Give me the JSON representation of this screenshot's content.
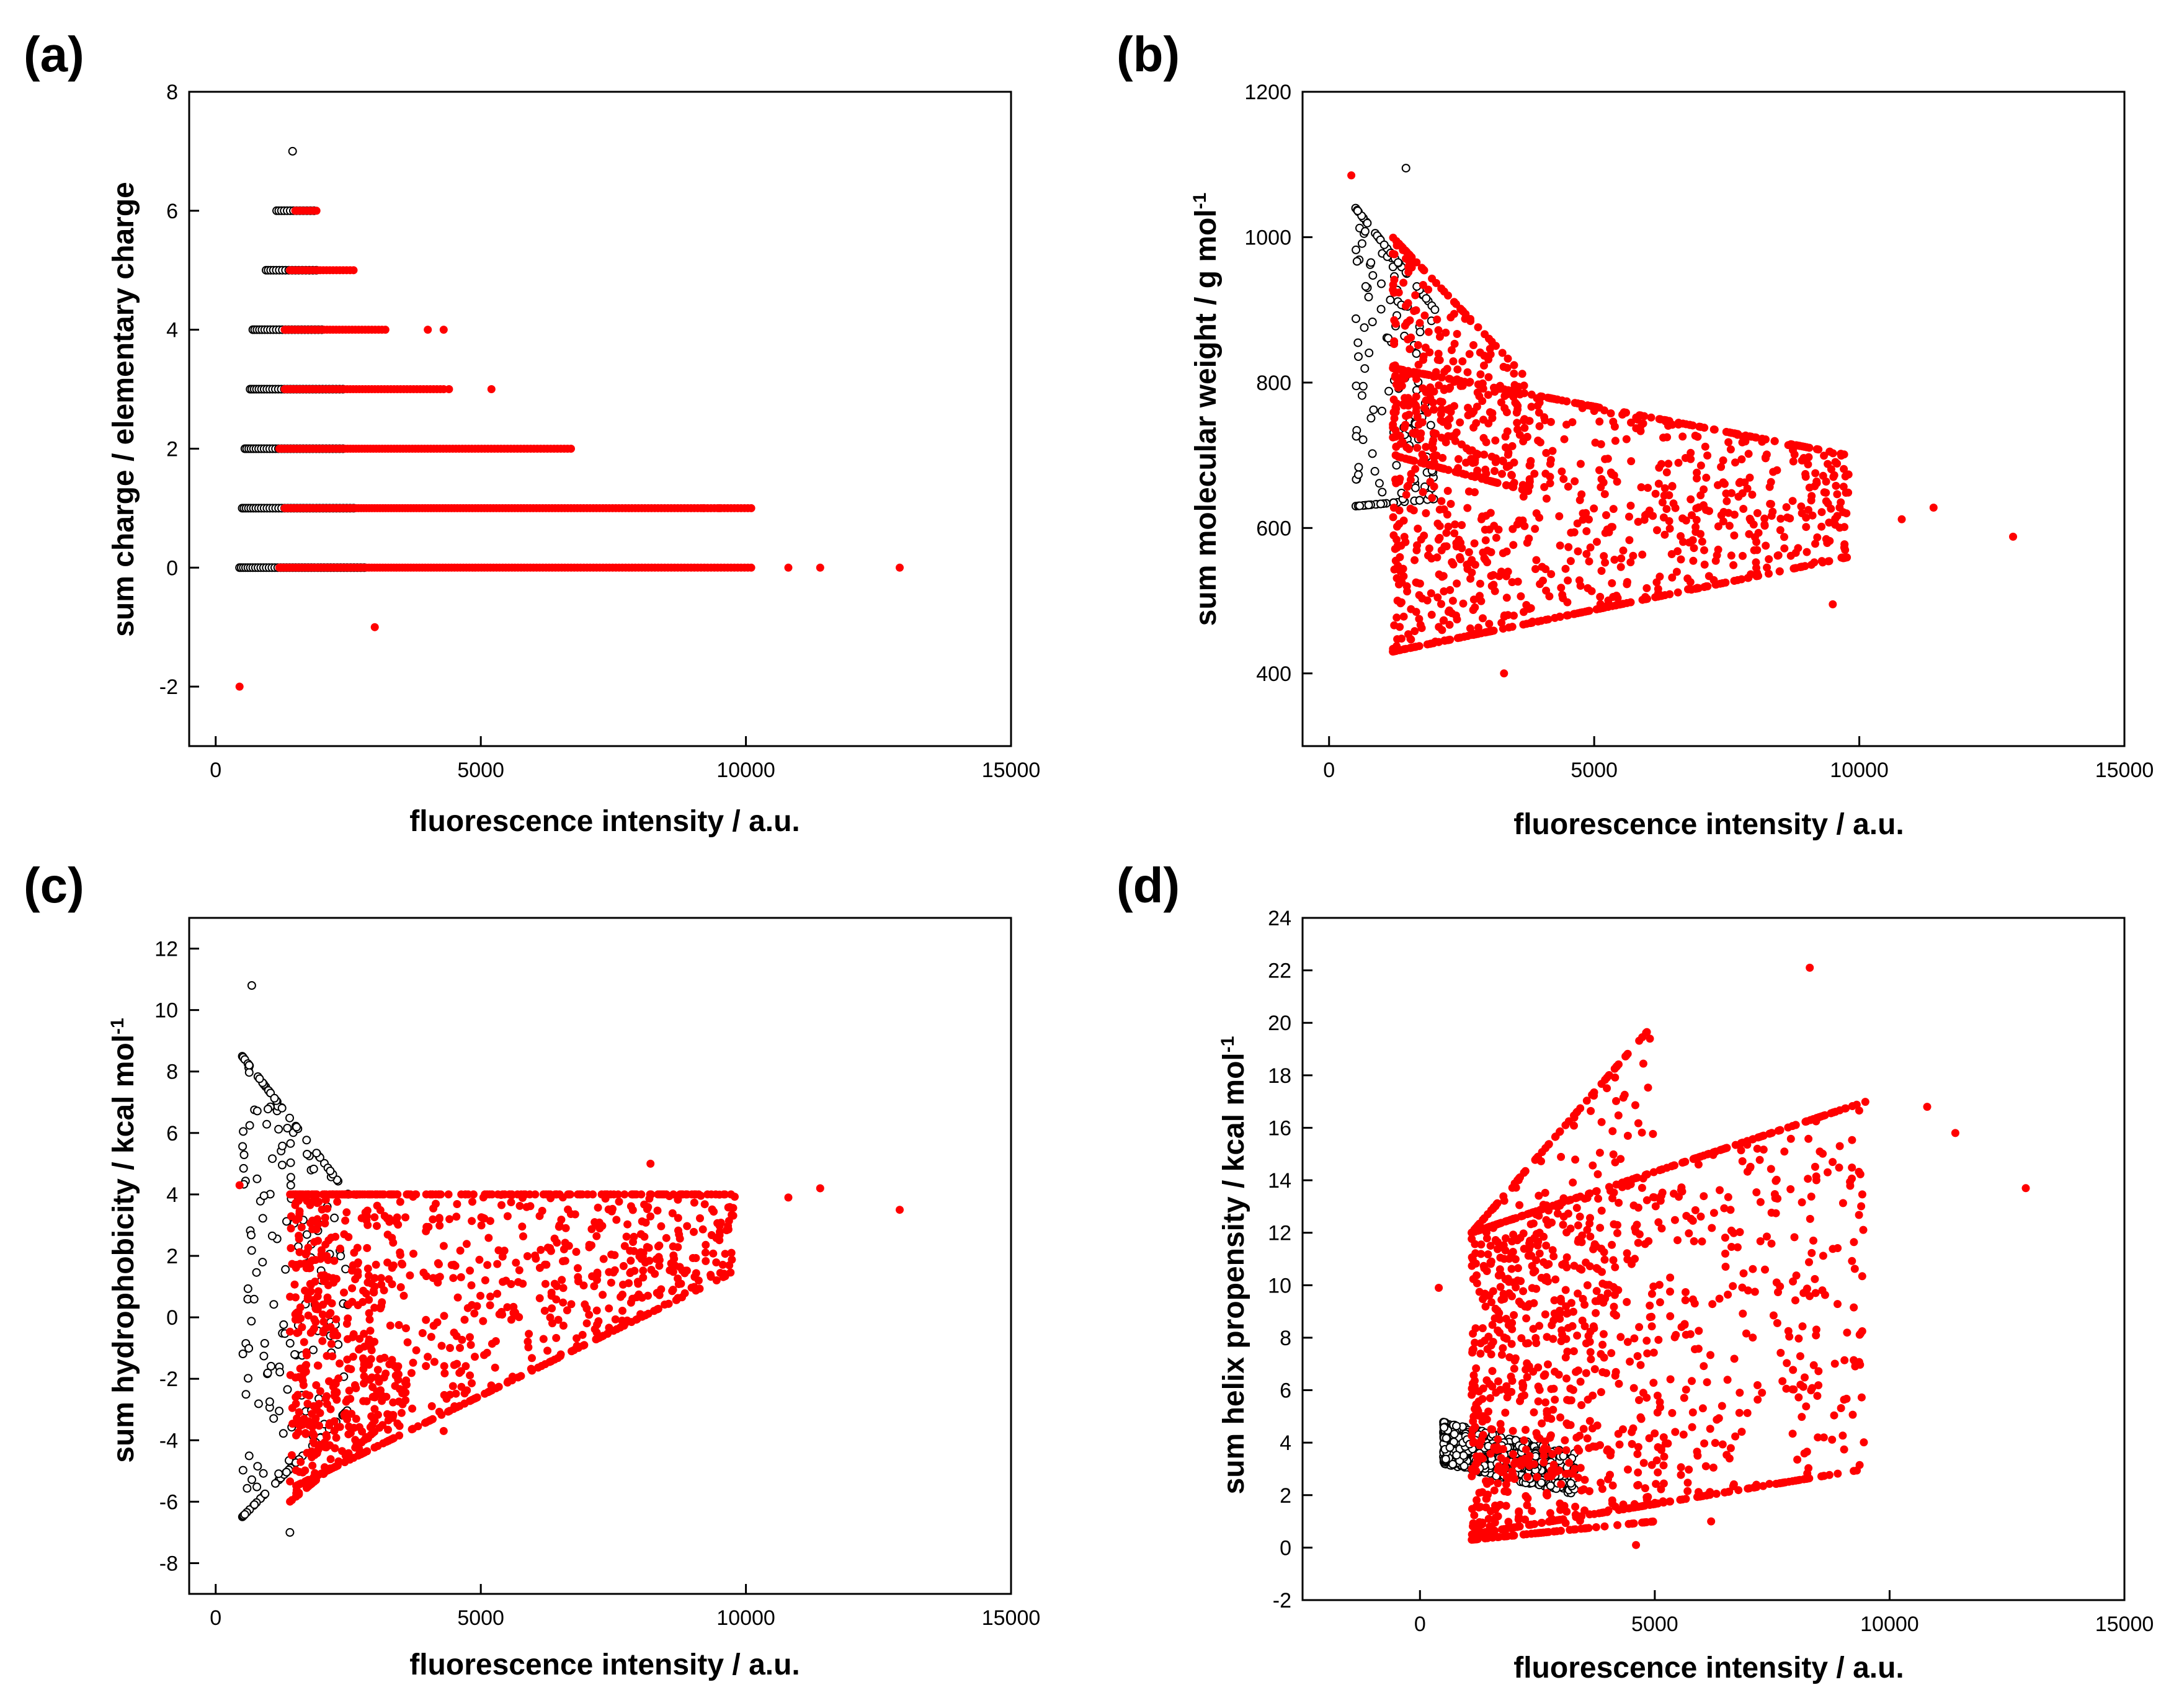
{
  "chart_data": [
    {
      "type": "scatter",
      "panel_label": "(a)",
      "xlabel": "fluorescence intensity / a.u.",
      "ylabel": "sum charge / elementary charge",
      "ylabel_sup": "",
      "xlim": [
        -500,
        15000
      ],
      "ylim": [
        -3,
        8
      ],
      "xticks": [
        0,
        5000,
        10000,
        15000
      ],
      "yticks": [
        -2,
        0,
        2,
        4,
        6,
        8
      ],
      "colors": {
        "black_series": "#000000",
        "red_series": "#ff0000"
      },
      "clouds": [
        {
          "color": "red",
          "kind": "rows",
          "rows": [
            {
              "y": 0,
              "x": [
                1200,
                10100
              ]
            },
            {
              "y": 1,
              "x": [
                1300,
                10100
              ]
            },
            {
              "y": 2,
              "x": [
                1200,
                6700
              ]
            },
            {
              "y": 3,
              "x": [
                1300,
                4300
              ]
            },
            {
              "y": 4,
              "x": [
                1300,
                3200
              ]
            },
            {
              "y": 5,
              "x": [
                1400,
                2600
              ]
            },
            {
              "y": 6,
              "x": [
                1500,
                1900
              ]
            }
          ]
        },
        {
          "color": "black",
          "kind": "rows",
          "rows": [
            {
              "y": 0,
              "x": [
                450,
                2800
              ]
            },
            {
              "y": 1,
              "x": [
                500,
                2600
              ]
            },
            {
              "y": 2,
              "x": [
                550,
                2400
              ]
            },
            {
              "y": 3,
              "x": [
                650,
                2400
              ]
            },
            {
              "y": 4,
              "x": [
                700,
                2000
              ]
            },
            {
              "y": 5,
              "x": [
                950,
                1900
              ]
            },
            {
              "y": 6,
              "x": [
                1150,
                1850
              ]
            }
          ]
        }
      ],
      "outliers": [
        {
          "x": 12900,
          "y": 0,
          "color": "red"
        },
        {
          "x": 11400,
          "y": 0,
          "color": "red"
        },
        {
          "x": 10800,
          "y": 0,
          "color": "red"
        },
        {
          "x": 9200,
          "y": 1,
          "color": "red"
        },
        {
          "x": 9500,
          "y": 1,
          "color": "red"
        },
        {
          "x": 5200,
          "y": 3,
          "color": "red"
        },
        {
          "x": 4400,
          "y": 3,
          "color": "red"
        },
        {
          "x": 4000,
          "y": 4,
          "color": "red"
        },
        {
          "x": 4300,
          "y": 4,
          "color": "red"
        },
        {
          "x": 3000,
          "y": -1,
          "color": "red"
        },
        {
          "x": 450,
          "y": -2,
          "color": "red"
        },
        {
          "x": 1450,
          "y": 7,
          "color": "black"
        }
      ]
    },
    {
      "type": "scatter",
      "panel_label": "(b)",
      "xlabel": "fluorescence intensity / a.u.",
      "ylabel": "sum molecular weight / g mol",
      "ylabel_sup": "-1",
      "xlim": [
        -500,
        15000
      ],
      "ylim": [
        300,
        1200
      ],
      "xticks": [
        0,
        5000,
        10000,
        15000
      ],
      "yticks": [
        400,
        600,
        800,
        1000,
        1200
      ],
      "colors": {
        "black_series": "#000000",
        "red_series": "#ff0000"
      },
      "clouds": [
        {
          "color": "red",
          "kind": "band",
          "x": [
            1200,
            9800
          ],
          "base_lo": [
            430,
            560
          ],
          "base_hi": [
            820,
            700
          ],
          "spread": 0.55
        },
        {
          "color": "red",
          "kind": "band",
          "x": [
            1200,
            3800
          ],
          "base_lo": [
            700,
            650
          ],
          "base_hi": [
            1000,
            800
          ],
          "spread": 0.7
        },
        {
          "color": "black",
          "kind": "band",
          "x": [
            500,
            2000
          ],
          "base_lo": [
            630,
            640
          ],
          "base_hi": [
            1040,
            900
          ],
          "spread": 0.8
        }
      ],
      "outliers": [
        {
          "x": 12900,
          "y": 588,
          "color": "red"
        },
        {
          "x": 11400,
          "y": 628,
          "color": "red"
        },
        {
          "x": 10800,
          "y": 612,
          "color": "red"
        },
        {
          "x": 420,
          "y": 1085,
          "color": "red"
        },
        {
          "x": 1450,
          "y": 1095,
          "color": "black"
        },
        {
          "x": 9500,
          "y": 495,
          "color": "red"
        },
        {
          "x": 3300,
          "y": 400,
          "color": "red"
        }
      ]
    },
    {
      "type": "scatter",
      "panel_label": "(c)",
      "xlabel": "fluorescence intensity / a.u.",
      "ylabel": "sum hydrophobicity / kcal mol",
      "ylabel_sup": "-1",
      "xlim": [
        -500,
        15000
      ],
      "ylim": [
        -9,
        13
      ],
      "xticks": [
        0,
        5000,
        10000,
        15000
      ],
      "yticks": [
        -8,
        -6,
        -4,
        -2,
        0,
        2,
        4,
        6,
        8,
        10,
        12
      ],
      "colors": {
        "black_series": "#000000",
        "red_series": "#ff0000"
      },
      "clouds": [
        {
          "color": "red",
          "kind": "band",
          "x": [
            1500,
            9800
          ],
          "base_lo": [
            -5.5,
            1.5
          ],
          "base_hi": [
            4,
            4
          ],
          "spread": 0.6
        },
        {
          "color": "red",
          "kind": "band",
          "x": [
            1400,
            3500
          ],
          "base_lo": [
            -6,
            -3
          ],
          "base_hi": [
            4,
            4
          ],
          "spread": 0.6
        },
        {
          "color": "black",
          "kind": "band",
          "x": [
            500,
            2500
          ],
          "base_lo": [
            -6.5,
            -3
          ],
          "base_hi": [
            8.5,
            4
          ],
          "spread": 0.8
        }
      ],
      "outliers": [
        {
          "x": 12900,
          "y": 3.5,
          "color": "red"
        },
        {
          "x": 11400,
          "y": 4.2,
          "color": "red"
        },
        {
          "x": 10800,
          "y": 3.9,
          "color": "red"
        },
        {
          "x": 450,
          "y": 4.3,
          "color": "red"
        },
        {
          "x": 4300,
          "y": -3.7,
          "color": "red"
        },
        {
          "x": 680,
          "y": 10.8,
          "color": "black"
        },
        {
          "x": 1400,
          "y": -7,
          "color": "black"
        },
        {
          "x": 8200,
          "y": 5.0,
          "color": "red"
        }
      ]
    },
    {
      "type": "scatter",
      "panel_label": "(d)",
      "xlabel": "fluorescence intensity / a.u.",
      "ylabel": "sum helix propensity / kcal mol",
      "ylabel_sup": "-1",
      "xlim": [
        -2500,
        15000
      ],
      "ylim": [
        -2,
        24
      ],
      "xticks": [
        0,
        5000,
        10000,
        15000
      ],
      "yticks": [
        -2,
        0,
        2,
        4,
        6,
        8,
        10,
        12,
        14,
        16,
        18,
        20,
        22,
        24
      ],
      "colors": {
        "black_series": "#000000",
        "red_series": "#ff0000"
      },
      "clouds": [
        {
          "color": "red",
          "kind": "band",
          "x": [
            1100,
            9500
          ],
          "base_lo": [
            0.5,
            3
          ],
          "base_hi": [
            12,
            17
          ],
          "spread": 0.6
        },
        {
          "color": "red",
          "kind": "band",
          "x": [
            1100,
            5000
          ],
          "base_lo": [
            0.3,
            1
          ],
          "base_hi": [
            12,
            20
          ],
          "spread": 0.5
        },
        {
          "color": "black",
          "kind": "tri",
          "x": [
            500,
            3300
          ],
          "top": [
            4.8,
            3.6
          ],
          "bottom": [
            3.2,
            2.0
          ]
        }
      ],
      "outliers": [
        {
          "x": 12900,
          "y": 13.7,
          "color": "red"
        },
        {
          "x": 11400,
          "y": 15.8,
          "color": "red"
        },
        {
          "x": 10800,
          "y": 16.8,
          "color": "red"
        },
        {
          "x": 8300,
          "y": 22.1,
          "color": "red"
        },
        {
          "x": 400,
          "y": 9.9,
          "color": "red"
        },
        {
          "x": 4600,
          "y": 0.1,
          "color": "red"
        },
        {
          "x": 8600,
          "y": 4.2,
          "color": "red"
        },
        {
          "x": 6200,
          "y": 1.0,
          "color": "red"
        }
      ]
    }
  ]
}
